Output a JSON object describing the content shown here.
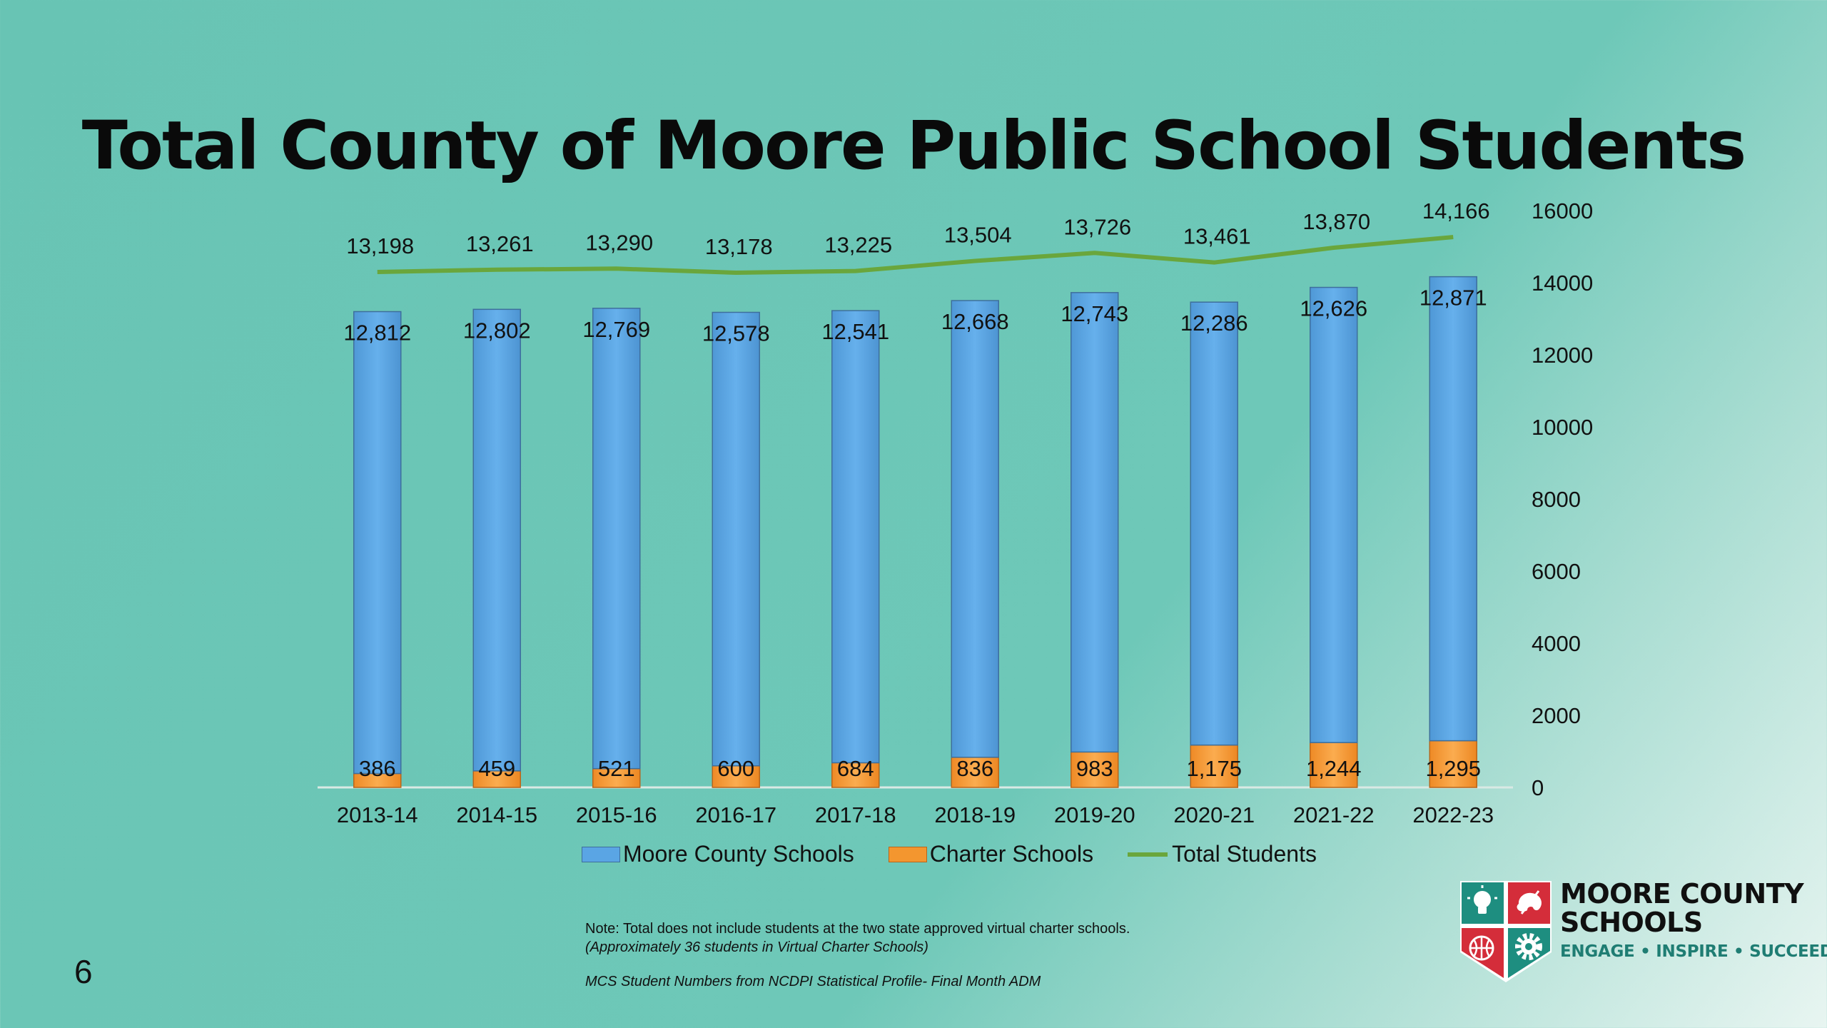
{
  "page_number": "6",
  "note": "Note: Total does not include students at the two state approved virtual charter schools.",
  "note_italic": "(Approximately 36 students in Virtual Charter Schools)",
  "source": "MCS Student Numbers from NCDPI Statistical Profile- Final Month ADM",
  "logo": {
    "line1": "MOORE COUNTY",
    "line2": "SCHOOLS",
    "tagline": "ENGAGE • INSPIRE • SUCCEED",
    "icons": [
      "lightbulb-icon",
      "palette-icon",
      "basketball-icon",
      "gear-icon"
    ]
  },
  "colors": {
    "moore_bar": "#5aa5e4",
    "charter_bar": "#f3962f",
    "total_line": "#6aa63c",
    "background": "#6ec8b8"
  },
  "chart_data": {
    "type": "bar",
    "stacked": true,
    "title": "Total County of Moore Public School Students",
    "categories": [
      "2013-14",
      "2014-15",
      "2015-16",
      "2016-17",
      "2017-18",
      "2018-19",
      "2019-20",
      "2020-21",
      "2021-22",
      "2022-23"
    ],
    "series": [
      {
        "name": "Moore County Schools",
        "type": "bar",
        "values": [
          12812,
          12802,
          12769,
          12578,
          12541,
          12668,
          12743,
          12286,
          12626,
          12871
        ],
        "labels": [
          "12,812",
          "12,802",
          "12,769",
          "12,578",
          "12,541",
          "12,668",
          "12,743",
          "12,286",
          "12,626",
          "12,871"
        ]
      },
      {
        "name": "Charter Schools",
        "type": "bar",
        "values": [
          386,
          459,
          521,
          600,
          684,
          836,
          983,
          1175,
          1244,
          1295
        ],
        "labels": [
          "386",
          "459",
          "521",
          "600",
          "684",
          "836",
          "983",
          "1,175",
          "1,244",
          "1,295"
        ]
      },
      {
        "name": "Total Students",
        "type": "line",
        "values": [
          13198,
          13261,
          13290,
          13178,
          13225,
          13504,
          13726,
          13461,
          13870,
          14166
        ],
        "labels": [
          "13,198",
          "13,261",
          "13,290",
          "13,178",
          "13,225",
          "13,504",
          "13,726",
          "13,461",
          "13,870",
          "14,166"
        ]
      }
    ],
    "y_axis": {
      "side": "right",
      "ylim": [
        0,
        16000
      ],
      "ticks": [
        "0",
        "2000",
        "4000",
        "6000",
        "8000",
        "10000",
        "12000",
        "14000",
        "16000"
      ]
    },
    "legend_position": "bottom"
  }
}
